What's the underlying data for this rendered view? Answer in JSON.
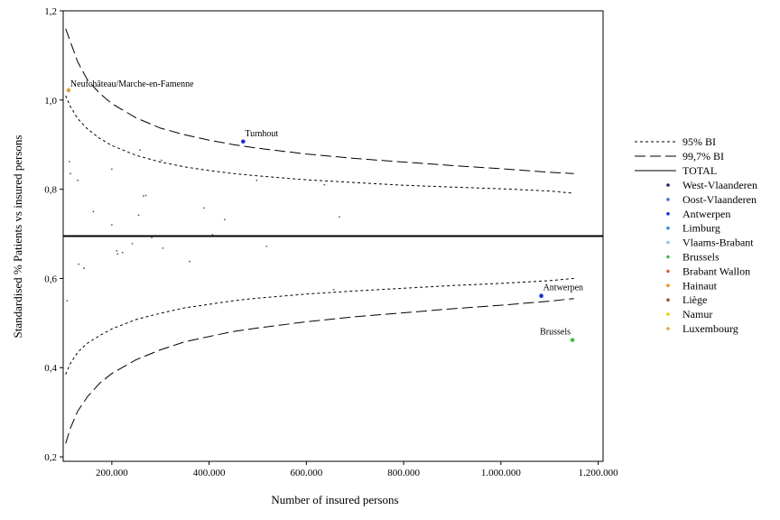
{
  "chart_data": {
    "type": "scatter",
    "xlabel": "Number of insured persons",
    "ylabel": "Standardised % Patients vs insured persons",
    "xlim": [
      100000,
      1210000
    ],
    "ylim": [
      0.19,
      1.2
    ],
    "x_ticks": [
      200000,
      400000,
      600000,
      800000,
      1000000,
      1200000
    ],
    "x_tick_labels": [
      "200.000",
      "400.000",
      "600.000",
      "800.000",
      "1.000.000",
      "1.200.000"
    ],
    "y_ticks": [
      0.2,
      0.4,
      0.6,
      0.8,
      1.0,
      1.2
    ],
    "y_tick_labels": [
      "0,2",
      "0,4",
      "0,6",
      "0,8",
      "1,0",
      "1,2"
    ],
    "grid": false,
    "legend_position": "right",
    "total": 0.695,
    "limits": {
      "x": [
        105000,
        115000,
        130000,
        150000,
        175000,
        200000,
        250000,
        300000,
        350000,
        400000,
        450000,
        500000,
        600000,
        700000,
        800000,
        900000,
        1000000,
        1100000,
        1150000
      ],
      "ci95_upper": [
        1.01,
        0.985,
        0.958,
        0.935,
        0.914,
        0.898,
        0.876,
        0.861,
        0.85,
        0.842,
        0.835,
        0.83,
        0.821,
        0.815,
        0.809,
        0.805,
        0.801,
        0.796,
        0.791
      ],
      "ci95_lower": [
        0.385,
        0.41,
        0.435,
        0.455,
        0.472,
        0.487,
        0.508,
        0.522,
        0.534,
        0.542,
        0.55,
        0.556,
        0.565,
        0.572,
        0.578,
        0.584,
        0.589,
        0.595,
        0.6
      ],
      "ci997_upper": [
        1.16,
        1.13,
        1.085,
        1.045,
        1.015,
        0.992,
        0.96,
        0.937,
        0.922,
        0.91,
        0.9,
        0.892,
        0.879,
        0.869,
        0.861,
        0.853,
        0.846,
        0.838,
        0.835
      ],
      "ci997_lower": [
        0.23,
        0.265,
        0.303,
        0.335,
        0.365,
        0.387,
        0.418,
        0.44,
        0.458,
        0.47,
        0.481,
        0.489,
        0.503,
        0.514,
        0.523,
        0.532,
        0.54,
        0.549,
        0.555
      ]
    },
    "points": [
      {
        "x": 111000,
        "y": 1.022,
        "province": "Luxembourg",
        "label": "Neufchâteau/Marche-en-Famenne"
      },
      {
        "x": 470000,
        "y": 0.907,
        "province": "Antwerpen",
        "label": "Turnhout"
      },
      {
        "x": 1083000,
        "y": 0.561,
        "province": "Antwerpen",
        "label": "Antwerpen"
      },
      {
        "x": 1147000,
        "y": 0.462,
        "province": "Brussels",
        "label": "Brussels"
      },
      {
        "x": 113000,
        "y": 0.862,
        "province": "",
        "label": ""
      },
      {
        "x": 115000,
        "y": 0.835,
        "province": "",
        "label": ""
      },
      {
        "x": 130000,
        "y": 0.82,
        "province": "",
        "label": ""
      },
      {
        "x": 108000,
        "y": 0.55,
        "province": "",
        "label": ""
      },
      {
        "x": 132000,
        "y": 0.632,
        "province": "",
        "label": ""
      },
      {
        "x": 143000,
        "y": 0.623,
        "province": "",
        "label": ""
      },
      {
        "x": 162000,
        "y": 0.75,
        "province": "",
        "label": ""
      },
      {
        "x": 200000,
        "y": 0.72,
        "province": "",
        "label": ""
      },
      {
        "x": 200000,
        "y": 0.845,
        "province": "",
        "label": ""
      },
      {
        "x": 210000,
        "y": 0.662,
        "province": "",
        "label": ""
      },
      {
        "x": 212000,
        "y": 0.655,
        "province": "",
        "label": ""
      },
      {
        "x": 222000,
        "y": 0.658,
        "province": "",
        "label": ""
      },
      {
        "x": 242000,
        "y": 0.678,
        "province": "",
        "label": ""
      },
      {
        "x": 255000,
        "y": 0.742,
        "province": "",
        "label": ""
      },
      {
        "x": 265000,
        "y": 0.785,
        "province": "",
        "label": ""
      },
      {
        "x": 270000,
        "y": 0.786,
        "province": "",
        "label": ""
      },
      {
        "x": 258000,
        "y": 0.888,
        "province": "",
        "label": ""
      },
      {
        "x": 282000,
        "y": 0.692,
        "province": "",
        "label": ""
      },
      {
        "x": 302000,
        "y": 0.865,
        "province": "",
        "label": ""
      },
      {
        "x": 305000,
        "y": 0.668,
        "province": "",
        "label": ""
      },
      {
        "x": 360000,
        "y": 0.638,
        "province": "",
        "label": ""
      },
      {
        "x": 390000,
        "y": 0.758,
        "province": "",
        "label": ""
      },
      {
        "x": 407000,
        "y": 0.698,
        "province": "",
        "label": ""
      },
      {
        "x": 432000,
        "y": 0.732,
        "province": "",
        "label": ""
      },
      {
        "x": 498000,
        "y": 0.82,
        "province": "",
        "label": ""
      },
      {
        "x": 518000,
        "y": 0.672,
        "province": "",
        "label": ""
      },
      {
        "x": 637000,
        "y": 0.81,
        "province": "",
        "label": ""
      },
      {
        "x": 656000,
        "y": 0.575,
        "province": "",
        "label": ""
      },
      {
        "x": 668000,
        "y": 0.738,
        "province": "",
        "label": ""
      }
    ],
    "legend": {
      "lines": [
        {
          "label": "95% BI",
          "style": "short-dash"
        },
        {
          "label": "99,7% BI",
          "style": "long-dash"
        },
        {
          "label": "TOTAL",
          "style": "solid"
        }
      ],
      "provinces": [
        {
          "label": "West-Vlaanderen",
          "color": "#1f1f7a"
        },
        {
          "label": "Oost-Vlaanderen",
          "color": "#3f6fd8"
        },
        {
          "label": "Antwerpen",
          "color": "#1a2fd6"
        },
        {
          "label": "Limburg",
          "color": "#3b8fe0"
        },
        {
          "label": "Vlaams-Brabant",
          "color": "#8fc4ec"
        },
        {
          "label": "Brussels",
          "color": "#3fbf3f"
        },
        {
          "label": "Brabant Wallon",
          "color": "#d7622a"
        },
        {
          "label": "Hainaut",
          "color": "#f08a20"
        },
        {
          "label": "Liège",
          "color": "#a0522d"
        },
        {
          "label": "Namur",
          "color": "#f5c518"
        },
        {
          "label": "Luxembourg",
          "color": "#e8a040"
        }
      ]
    },
    "default_point_color": "#555555"
  }
}
